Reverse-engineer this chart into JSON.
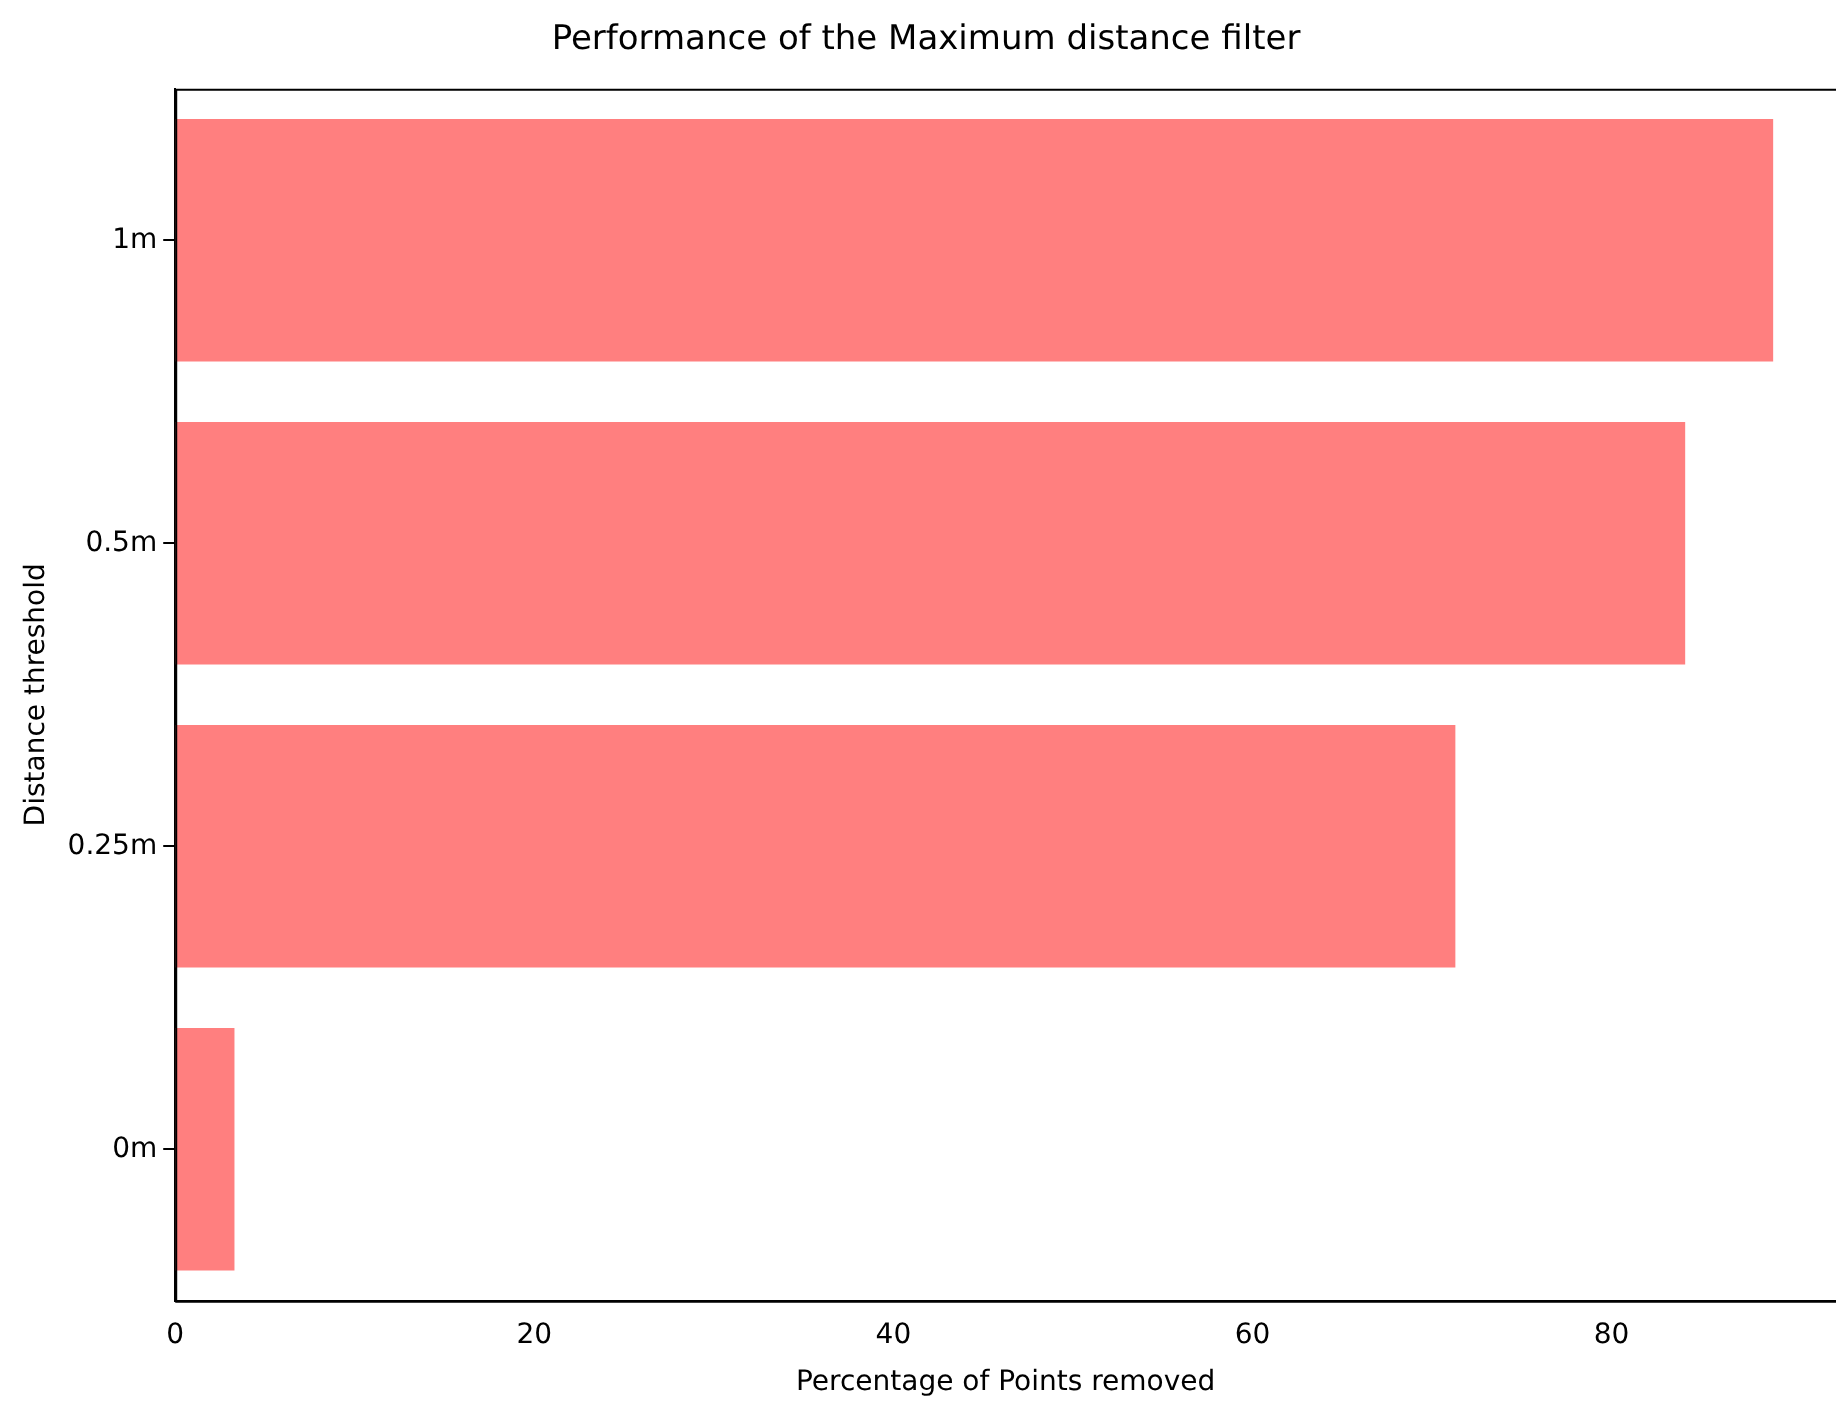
{
  "chart_data": {
    "type": "bar",
    "orientation": "horizontal",
    "title": "Performance of the Maximum distance filter",
    "xlabel": "Percentage of Points removed",
    "ylabel": "Distance threshold",
    "categories": [
      "1m",
      "0.5m",
      "0.25m",
      "0m"
    ],
    "values": [
      89,
      84.1,
      71.3,
      3.3
    ],
    "color": "#ff7f7f",
    "xlim": [
      0,
      92.5
    ],
    "xticks": [
      0,
      20,
      40,
      60,
      80
    ],
    "grid": false,
    "legend": false
  }
}
